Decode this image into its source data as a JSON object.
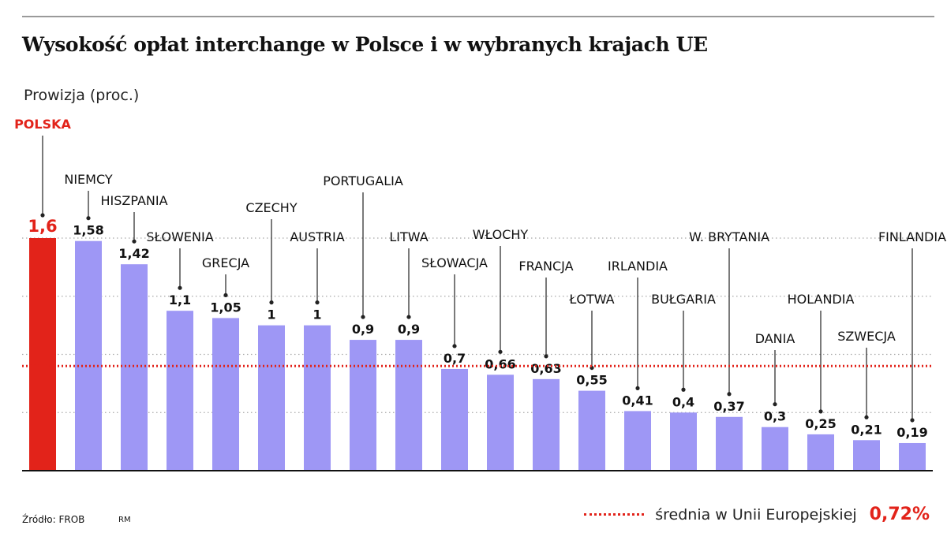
{
  "chart_data": {
    "type": "bar",
    "title": "Wysokość opłat interchange w Polsce i w wybranych krajach UE",
    "ylabel": "Prowizja (proc.)",
    "ylim": [
      0,
      1.6
    ],
    "grid": true,
    "categories": [
      "POLSKA",
      "NIEMCY",
      "HISZPANIA",
      "SŁOWENIA",
      "GRECJA",
      "CZECHY",
      "AUSTRIA",
      "PORTUGALIA",
      "LITWA",
      "SŁOWACJA",
      "WŁOCHY",
      "FRANCJA",
      "ŁOTWA",
      "IRLANDIA",
      "BUŁGARIA",
      "W. BRYTANIA",
      "DANIA",
      "HOLANDIA",
      "SZWECJA",
      "FINLANDIA"
    ],
    "values": [
      1.6,
      1.58,
      1.42,
      1.1,
      1.05,
      1,
      1,
      0.9,
      0.9,
      0.7,
      0.66,
      0.63,
      0.55,
      0.41,
      0.4,
      0.37,
      0.3,
      0.25,
      0.21,
      0.19
    ],
    "value_labels": [
      "1,6",
      "1,58",
      "1,42",
      "1,1",
      "1,05",
      "1",
      "1",
      "0,9",
      "0,9",
      "0,7",
      "0,66",
      "0,63",
      "0,55",
      "0,41",
      "0,4",
      "0,37",
      "0,3",
      "0,25",
      "0,21",
      "0,19"
    ],
    "highlight_index": 0,
    "average": {
      "value": 0.72,
      "label": "średnia w Unii Europejskiej",
      "value_label": "0,72%"
    }
  },
  "colors": {
    "bar": "#9e97f5",
    "highlight": "#e2231a",
    "average": "#e2231a",
    "grid": "#a8a8a8",
    "text": "#111111"
  },
  "footer": {
    "source": "Źródło: FROB",
    "author": "RM"
  }
}
